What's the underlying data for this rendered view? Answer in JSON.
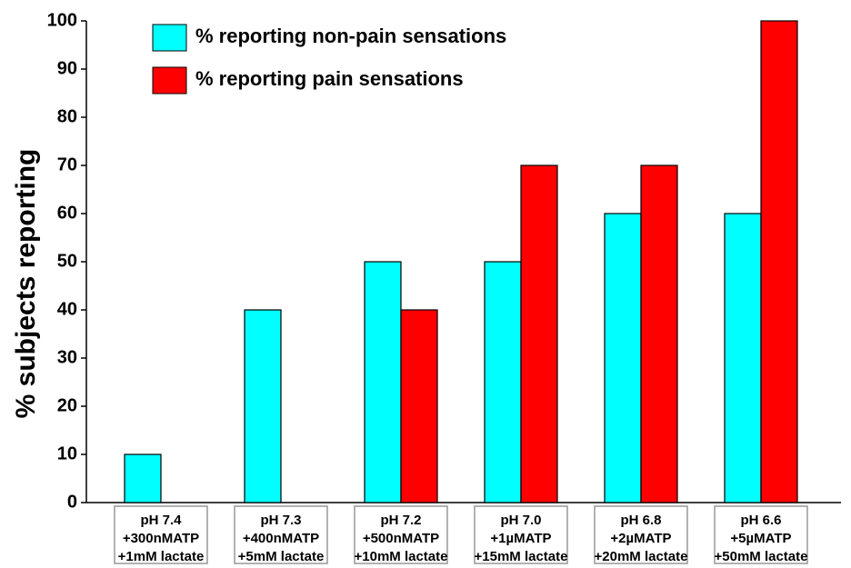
{
  "chart_data": {
    "type": "bar",
    "y_label": "% subjects reporting",
    "categories": [
      [
        "pH 7.4",
        "+300nMATP",
        "+1mM lactate"
      ],
      [
        "pH 7.3",
        "+400nMATP",
        "+5mM lactate"
      ],
      [
        "pH 7.2",
        "+500nMATP",
        "+10mM lactate"
      ],
      [
        "pH 7.0",
        "+1µMATP",
        "+15mM lactate"
      ],
      [
        "pH 6.8",
        "+2µMATP",
        "+20mM lactate"
      ],
      [
        "pH 6.6",
        "+5µMATP",
        "+50mM lactate"
      ]
    ],
    "series": [
      {
        "name": "% reporting non-pain sensations",
        "color": "#00ffff",
        "values": [
          10,
          40,
          50,
          50,
          60,
          60
        ]
      },
      {
        "name": "% reporting pain sensations",
        "color": "#ff0000",
        "values": [
          0,
          0,
          40,
          70,
          70,
          100
        ]
      }
    ],
    "ylim": [
      0,
      100
    ],
    "yticks": [
      0,
      10,
      20,
      30,
      40,
      50,
      60,
      70,
      80,
      90,
      100
    ],
    "grid": false
  }
}
